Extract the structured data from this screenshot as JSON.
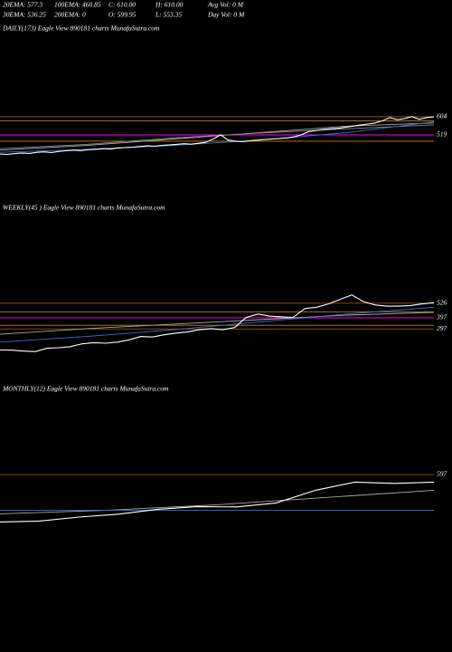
{
  "header": [
    [
      "20EMA: 577.3",
      "100EMA: 460.85",
      "C: 610.00",
      "H: 610.00",
      "Avg Vol: 0  M"
    ],
    [
      "30EMA: 536.25",
      "200EMA: 0",
      "O: 599.95",
      "L: 553.35",
      "Day Vol: 0  M"
    ]
  ],
  "chart_data": [
    {
      "type": "line",
      "title": "DAILY(173) Eagle   View   890181 charts MunafaSutra.com",
      "ylim": [
        240,
        980
      ],
      "yticks": [
        604,
        519
      ],
      "grid": true,
      "series": [
        {
          "color": "#ff00ff",
          "values": [
            519,
            519
          ]
        },
        {
          "color": "#c8781e",
          "values": [
            584,
            584
          ]
        },
        {
          "color": "#c8781e",
          "values": [
            490,
            490
          ]
        },
        {
          "color": "#aaaaaa",
          "values": [
            448,
            470,
            500,
            530,
            560,
            575
          ]
        },
        {
          "color": "#888888",
          "values": [
            455,
            475,
            505,
            528,
            548,
            566
          ]
        },
        {
          "color": "#3a6fd8",
          "values": [
            438,
            452,
            470,
            495,
            530,
            580
          ]
        },
        {
          "color": "#ffffff",
          "values": [
            430,
            428,
            432,
            435,
            433,
            438,
            440,
            437,
            442,
            445,
            448,
            446,
            450,
            452,
            455,
            453,
            458,
            460,
            462,
            465,
            468,
            466,
            470,
            472,
            475,
            478,
            476,
            480,
            485,
            500,
            520,
            495,
            490,
            488,
            492,
            495,
            498,
            500,
            502,
            505,
            510,
            520,
            535,
            540,
            545,
            548,
            550,
            555,
            560,
            565,
            570,
            575,
            585,
            600,
            590,
            595,
            605,
            592,
            600,
            604
          ]
        }
      ]
    },
    {
      "type": "line",
      "title": "WEEKLY(45                              ) Eagle   View   890181 charts MunafaSutra.com",
      "ylim": [
        -160,
        1290
      ],
      "yticks": [
        526,
        397,
        297
      ],
      "grid": true,
      "series": [
        {
          "color": "#ff00ff",
          "values": [
            397,
            397
          ]
        },
        {
          "color": "#c8781e",
          "values": [
            450,
            450
          ]
        },
        {
          "color": "#c8781e",
          "values": [
            330,
            330
          ]
        },
        {
          "color": "#aaaaaa",
          "values": [
            250,
            300,
            340,
            380,
            420,
            445
          ]
        },
        {
          "color": "#3a6fd8",
          "values": [
            180,
            230,
            290,
            360,
            430,
            490
          ]
        },
        {
          "color": "#ffffff",
          "values": [
            110,
            108,
            100,
            95,
            125,
            130,
            140,
            165,
            175,
            170,
            180,
            200,
            230,
            225,
            245,
            260,
            270,
            290,
            300,
            290,
            310,
            400,
            430,
            410,
            405,
            400,
            480,
            490,
            520,
            560,
            600,
            540,
            510,
            500,
            500,
            505,
            520,
            530
          ]
        }
      ]
    },
    {
      "type": "line",
      "title": "MONTHLY(12) Eagle   View   890181 charts MunafaSutra.com",
      "ylim": [
        17,
        1017
      ],
      "yticks": [
        597
      ],
      "grid": true,
      "series": [
        {
          "color": "#aaaaaa",
          "values": [
            380,
            400,
            430,
            470,
            510
          ]
        },
        {
          "color": "#3a6fd8",
          "values": [
            400,
            400
          ]
        },
        {
          "color": "#ffffff",
          "values": [
            335,
            340,
            362,
            378,
            405,
            420,
            418,
            440,
            510,
            555,
            548,
            555
          ]
        }
      ]
    }
  ]
}
